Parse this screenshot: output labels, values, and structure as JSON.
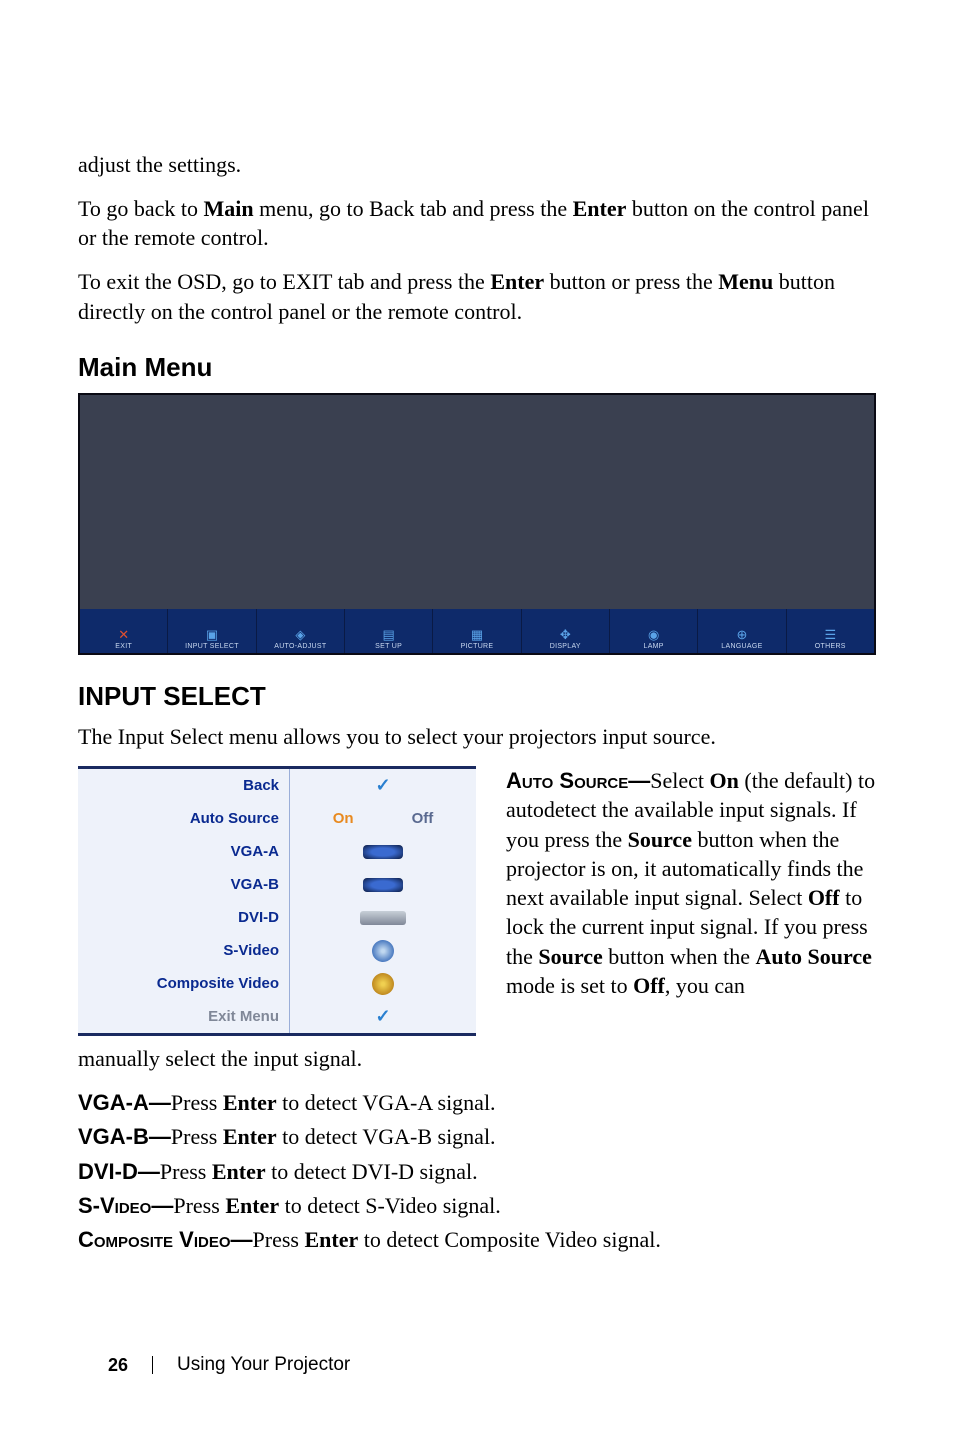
{
  "intro": {
    "p1": "adjust the settings.",
    "p2a": "To go back to ",
    "p2b": "Main",
    "p2c": " menu, go to Back tab and press the ",
    "p2d": "Enter",
    "p2e": " button on the control panel or the remote control.",
    "p3a": "To exit the OSD, go to EXIT tab and press the ",
    "p3b": "Enter",
    "p3c": " button or press the ",
    "p3d": "Menu",
    "p3e": " button directly on the control panel or the remote control."
  },
  "heading_main": "Main Menu",
  "osd_bg_color": "#3a4050",
  "osd_bar_color": "#0e2a6a",
  "tabs": [
    {
      "label": "EXIT",
      "icon": "✕",
      "icon_color": "red"
    },
    {
      "label": "INPUT SELECT",
      "icon": "▣"
    },
    {
      "label": "AUTO-ADJUST",
      "icon": "◈"
    },
    {
      "label": "SET UP",
      "icon": "▤"
    },
    {
      "label": "PICTURE",
      "icon": "▦"
    },
    {
      "label": "DISPLAY",
      "icon": "✥"
    },
    {
      "label": "LAMP",
      "icon": "◉"
    },
    {
      "label": "LANGUAGE",
      "icon": "⊕"
    },
    {
      "label": "OTHERS",
      "icon": "☰"
    }
  ],
  "heading_input": "INPUT SELECT",
  "input_intro": "The Input Select menu allows you to select your projectors input source.",
  "menu_border_color": "#1a2a60",
  "menu_bg_color": "#eef2fa",
  "menu": {
    "back": "Back",
    "auto_source": "Auto Source",
    "on": "On",
    "off": "Off",
    "vga_a": "VGA-A",
    "vga_b": "VGA-B",
    "dvi_d": "DVI-D",
    "s_video": "S-Video",
    "composite": "Composite Video",
    "exit_menu": "Exit Menu"
  },
  "auto_source_desc": {
    "label": "Auto Source—",
    "t1": "Select ",
    "t2": "On",
    "t3": " (the default) to autodetect the available input signals. If you press the ",
    "t4": "Source",
    "t5": " button when the projector is on, it automatically finds the next available input signal. Select ",
    "t6": "Off",
    "t7": " to lock the current input signal. If you press the ",
    "t8": "Source",
    "t9": " button when the ",
    "t10": "Auto Source",
    "t11": " mode is set to ",
    "t12": "Off",
    "t13": ", you can "
  },
  "manual_tail": "manually select the input signal.",
  "defs": {
    "vga_a_l": "VGA-A—",
    "vga_a_t1": "Press ",
    "vga_a_t2": "Enter",
    "vga_a_t3": " to detect VGA-A signal.",
    "vga_b_l": "VGA-B—",
    "vga_b_t1": "Press ",
    "vga_b_t2": "Enter",
    "vga_b_t3": " to detect VGA-B signal.",
    "dvi_d_l": "DVI-D—",
    "dvi_d_t1": "Press ",
    "dvi_d_t2": "Enter",
    "dvi_d_t3": " to detect DVI-D signal.",
    "svid_l": "S-Video—",
    "svid_t1": "Press ",
    "svid_t2": "Enter",
    "svid_t3": " to detect S-Video signal.",
    "comp_l": "Composite Video—",
    "comp_t1": "Press ",
    "comp_t2": "Enter",
    "comp_t3": " to detect Composite Video signal."
  },
  "footer": {
    "page": "26",
    "text": "Using Your Projector"
  }
}
